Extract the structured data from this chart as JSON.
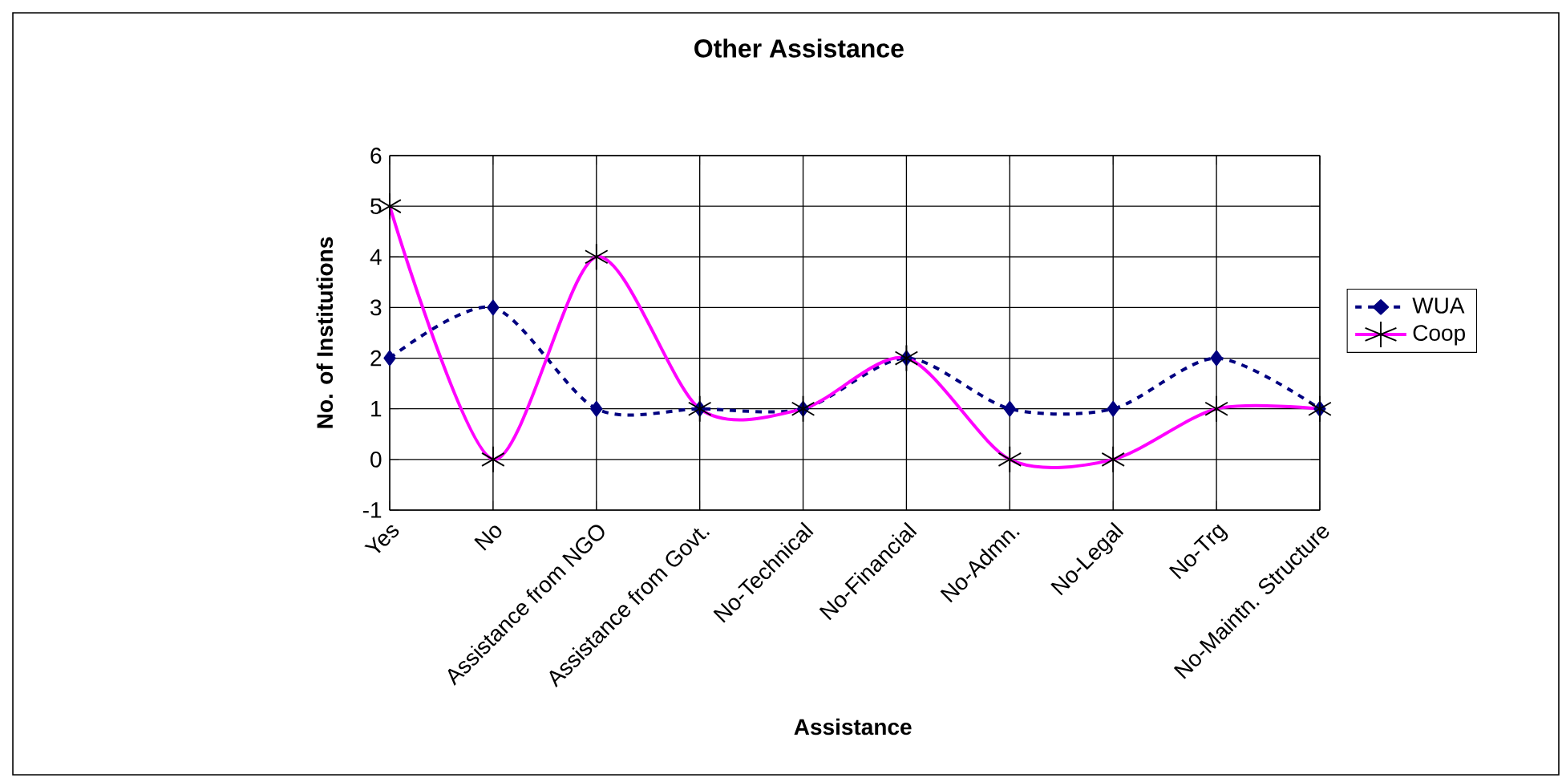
{
  "chart_data": {
    "type": "line",
    "title": "Other Assistance",
    "xlabel": "Assistance",
    "ylabel": "No. of Institutions",
    "categories": [
      "Yes",
      "No",
      "Assistance from NGO",
      "Assistance from Govt.",
      "No-Technical",
      "No-Financial",
      "No-Admn.",
      "No-Legal",
      "No-Trg",
      "No-Maintn. Structure"
    ],
    "series": [
      {
        "name": "WUA",
        "color": "#000080",
        "marker": "diamond",
        "line_style": "dashed",
        "values": [
          2,
          3,
          1,
          1,
          1,
          2,
          1,
          1,
          2,
          1
        ]
      },
      {
        "name": "Coop",
        "color": "#ff00ff",
        "marker": "cross",
        "line_style": "solid",
        "values": [
          5,
          0,
          4,
          1,
          1,
          2,
          0,
          0,
          1,
          1
        ]
      }
    ],
    "ylim": [
      -1,
      6
    ],
    "yticks": [
      -1,
      0,
      1,
      2,
      3,
      4,
      5,
      6
    ],
    "grid": true,
    "legend": "right"
  }
}
